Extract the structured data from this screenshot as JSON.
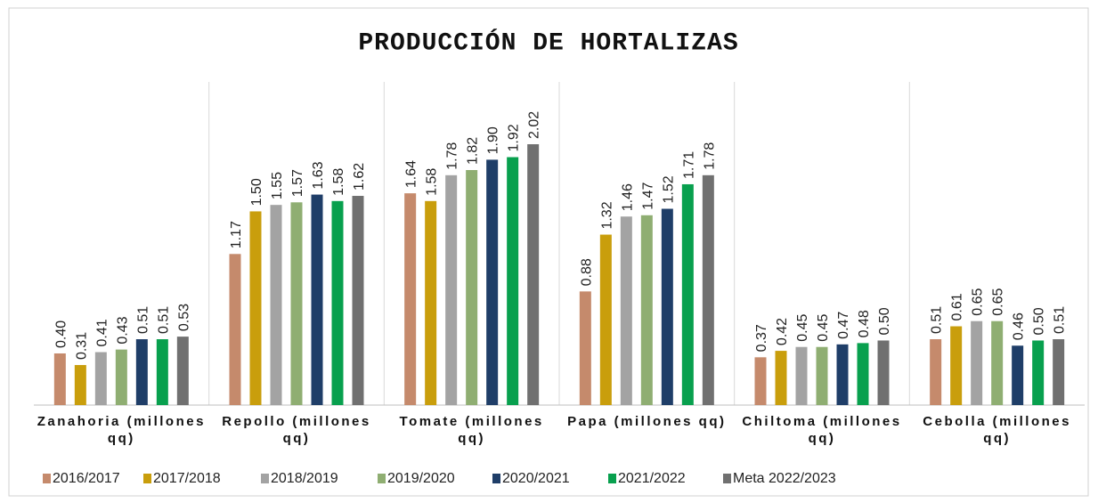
{
  "chart_data": {
    "type": "bar",
    "title": "PRODUCCIÓN DE HORTALIZAS",
    "categories": [
      "Zanahoria (millones qq)",
      "Repollo (millones qq)",
      "Tomate (millones qq)",
      "Papa (millones qq)",
      "Chiltoma (millones qq)",
      "Cebolla (millones qq)"
    ],
    "series": [
      {
        "name": "2016/2017",
        "color": "#c58a6c",
        "values": [
          0.4,
          1.17,
          1.64,
          0.88,
          0.37,
          0.51
        ],
        "value_labels": [
          "0.40",
          "1.17",
          "1.64",
          "0.88",
          "0.37",
          "0.51"
        ]
      },
      {
        "name": "2017/2018",
        "color": "#c99e0c",
        "values": [
          0.31,
          1.5,
          1.58,
          1.32,
          0.42,
          0.61
        ],
        "value_labels": [
          "0.31",
          "1.50",
          "1.58",
          "1.32",
          "0.42",
          "0.61"
        ]
      },
      {
        "name": "2018/2019",
        "color": "#a3a3a3",
        "values": [
          0.41,
          1.55,
          1.78,
          1.46,
          0.45,
          0.65
        ],
        "value_labels": [
          "0.41",
          "1.55",
          "1.78",
          "1.46",
          "0.45",
          "0.65"
        ]
      },
      {
        "name": "2019/2020",
        "color": "#8fae72",
        "values": [
          0.43,
          1.57,
          1.82,
          1.47,
          0.45,
          0.65
        ],
        "value_labels": [
          "0.43",
          "1.57",
          "1.82",
          "1.47",
          "0.45",
          "0.65"
        ]
      },
      {
        "name": "2020/2021",
        "color": "#1f3e68",
        "values": [
          0.51,
          1.63,
          1.9,
          1.52,
          0.47,
          0.46
        ],
        "value_labels": [
          "0.51",
          "1.63",
          "1.90",
          "1.52",
          "0.47",
          "0.46"
        ]
      },
      {
        "name": "2021/2022",
        "color": "#08a04e",
        "values": [
          0.51,
          1.58,
          1.92,
          1.71,
          0.48,
          0.5
        ],
        "value_labels": [
          "0.51",
          "1.58",
          "1.92",
          "1.71",
          "0.48",
          "0.50"
        ]
      },
      {
        "name": "Meta 2022/2023",
        "color": "#707070",
        "values": [
          0.53,
          1.62,
          2.02,
          1.78,
          0.5,
          0.51
        ],
        "value_labels": [
          "0.53",
          "1.62",
          "2.02",
          "1.78",
          "0.50",
          "0.51"
        ]
      }
    ]
  }
}
